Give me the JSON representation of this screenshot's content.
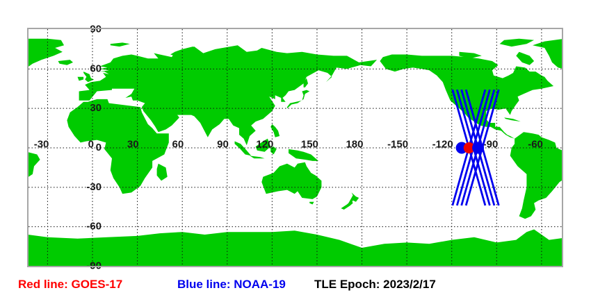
{
  "map": {
    "lon_labels": [
      {
        "text": "-30",
        "lon": -30
      },
      {
        "text": "0",
        "lon": 0
      },
      {
        "text": "30",
        "lon": 30
      },
      {
        "text": "60",
        "lon": 60
      },
      {
        "text": "90",
        "lon": 90
      },
      {
        "text": "120",
        "lon": 120
      },
      {
        "text": "150",
        "lon": 150
      },
      {
        "text": "180",
        "lon": 180
      },
      {
        "text": "-150",
        "lon": 210
      },
      {
        "text": "-120",
        "lon": 240
      },
      {
        "text": "-90",
        "lon": 270
      },
      {
        "text": "-60",
        "lon": 300
      }
    ],
    "lat_labels": [
      {
        "text": "90",
        "lat": 90
      },
      {
        "text": "60",
        "lat": 60
      },
      {
        "text": "30",
        "lat": 30
      },
      {
        "text": "0",
        "lat": 0
      },
      {
        "text": "-30",
        "lat": -30
      },
      {
        "text": "-60",
        "lat": -60
      },
      {
        "text": "-90",
        "lat": -90
      }
    ],
    "grid_lons": [
      -30,
      0,
      30,
      60,
      90,
      120,
      150,
      180,
      210,
      240,
      270,
      300
    ],
    "grid_lats": [
      60,
      30,
      0,
      -30,
      -60
    ],
    "tracks": {
      "satellite": "NOAA-19",
      "color": "#0000ee",
      "segments": [
        {
          "lon1": -119.5,
          "lat1": 44.3,
          "lon2": -97.6,
          "lat2": -43.8
        },
        {
          "lon1": -116.5,
          "lat1": 44.3,
          "lon2": -94.6,
          "lat2": -43.8
        },
        {
          "lon1": -113.5,
          "lat1": 44.3,
          "lon2": -91.6,
          "lat2": -43.8
        },
        {
          "lon1": -110.5,
          "lat1": 44.3,
          "lon2": -88.6,
          "lat2": -43.8
        },
        {
          "lon1": -97.6,
          "lat1": 44.3,
          "lon2": -119.5,
          "lat2": -43.8
        },
        {
          "lon1": -94.6,
          "lat1": 44.3,
          "lon2": -116.5,
          "lat2": -43.8
        },
        {
          "lon1": -91.6,
          "lat1": 44.3,
          "lon2": -113.5,
          "lat2": -43.8
        },
        {
          "lon1": -88.6,
          "lat1": 44.3,
          "lon2": -110.5,
          "lat2": -43.8
        }
      ]
    },
    "markers": [
      {
        "satellite": "NOAA-19",
        "color": "#0000ee",
        "lon": -113.3,
        "lat": 0,
        "r": 8.5
      },
      {
        "satellite": "GOES-17",
        "color": "#ee0000",
        "lon": -108.4,
        "lat": 0,
        "r": 8
      },
      {
        "satellite": "NOAA-19",
        "color": "#0000ee",
        "lon": -102.4,
        "lat": 0,
        "r": 8.5
      }
    ]
  },
  "legend": {
    "red_label": "Red line: GOES-17",
    "blue_label": "Blue line: NOAA-19",
    "tle_epoch_label": "TLE Epoch: 2023/2/17"
  },
  "colors": {
    "land": "#00cb00",
    "ocean": "#ffffff",
    "grid": "#111111",
    "grid_label": "#1a1a1a",
    "frame": "#a6a6a6",
    "track_blue": "#0000ee",
    "goes_red": "#ee0000"
  }
}
